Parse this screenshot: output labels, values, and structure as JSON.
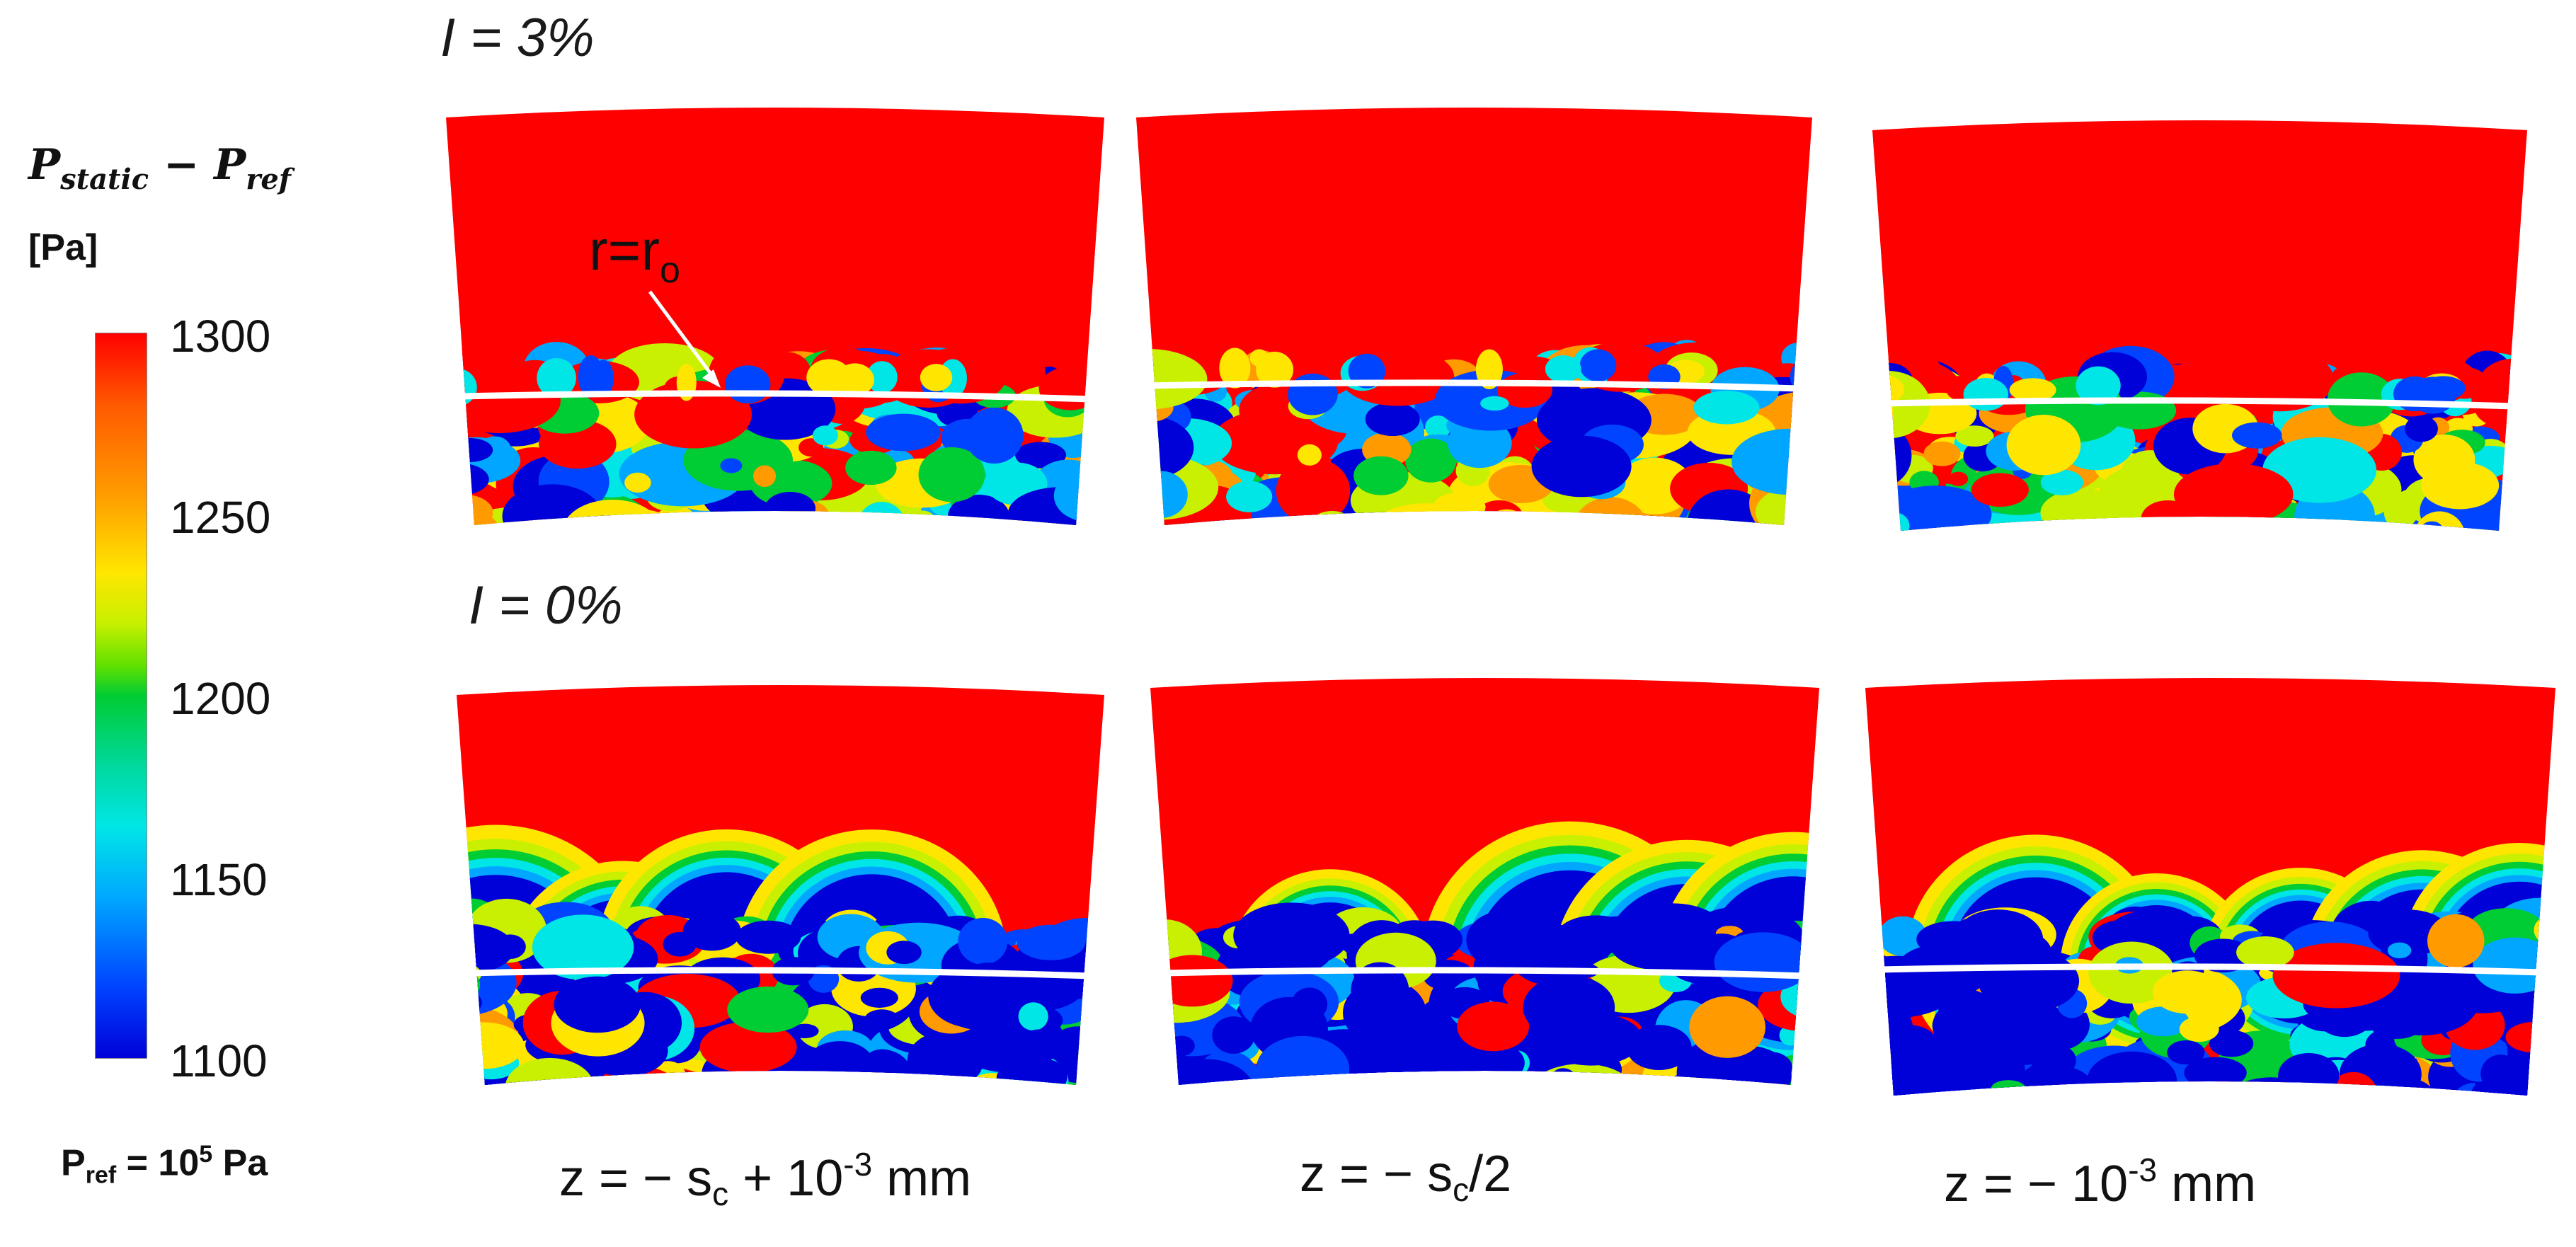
{
  "colorbar": {
    "title_main": "P",
    "title_sub1": "static",
    "title_minus": " − P",
    "title_sub2": "ref",
    "unit": "[Pa]",
    "ticks": [
      "1300",
      "1250",
      "1200",
      "1150",
      "1100"
    ],
    "pref_label_main": "P",
    "pref_label_sub": "ref",
    "pref_label_eq": " = 10",
    "pref_label_sup": "5",
    "pref_label_unit": " Pa",
    "colors": [
      "#ff0000",
      "#ff9a00",
      "#ffe600",
      "#00cc33",
      "#00e6e6",
      "#0044ff",
      "#0000d8"
    ]
  },
  "rows": [
    {
      "label": "I = 3%"
    },
    {
      "label": "I = 0%"
    }
  ],
  "annotation": {
    "main": "r=r",
    "sub": "o"
  },
  "columns": [
    {
      "parts": [
        "z = − s",
        "c",
        " + 10",
        "-3",
        " mm"
      ]
    },
    {
      "parts": [
        "z = − s",
        "c",
        "/2"
      ]
    },
    {
      "parts": [
        "z = − 10",
        "-3",
        " mm"
      ]
    }
  ]
}
